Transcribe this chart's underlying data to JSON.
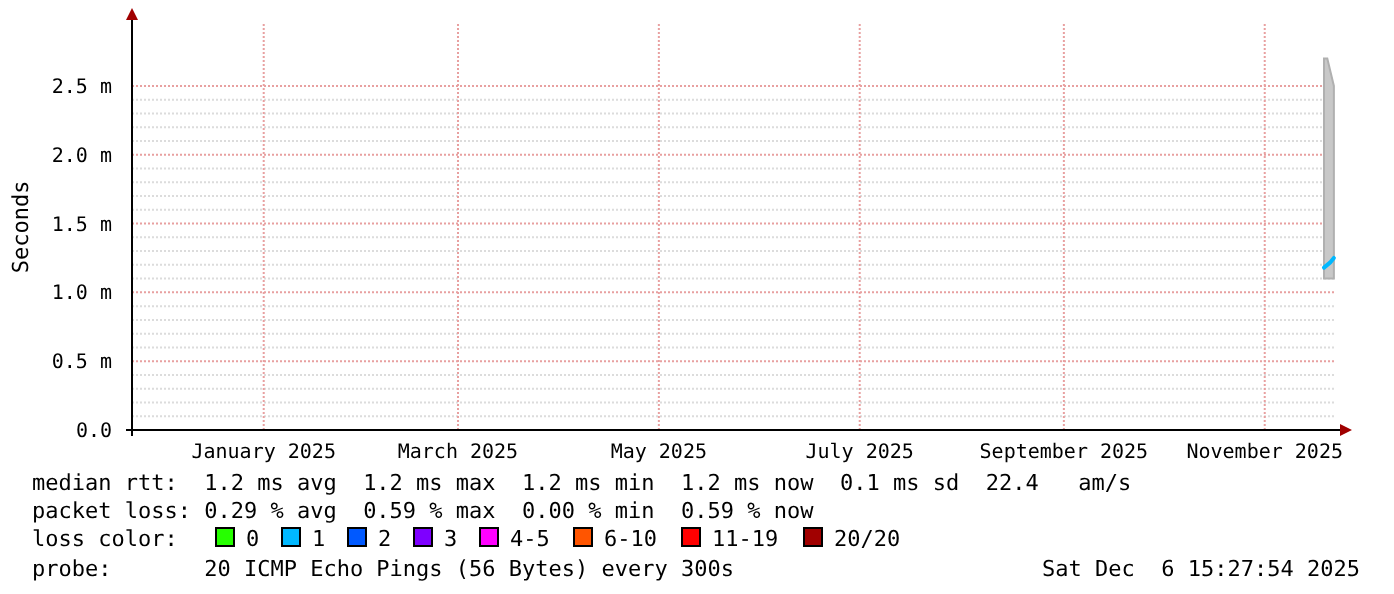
{
  "chart_data": {
    "type": "line",
    "ylabel": "Seconds",
    "xlim": [
      "2024-12-06",
      "2025-12-06T15:27"
    ],
    "xticks": [
      {
        "value": "2025-01-15",
        "label": "January 2025"
      },
      {
        "value": "2025-03-15",
        "label": "March 2025"
      },
      {
        "value": "2025-05-15",
        "label": "May 2025"
      },
      {
        "value": "2025-07-15",
        "label": "July 2025"
      },
      {
        "value": "2025-09-15",
        "label": "September 2025"
      },
      {
        "value": "2025-11-15",
        "label": "November 2025"
      }
    ],
    "ylim": [
      0,
      2.95
    ],
    "yticks": [
      {
        "value": 0,
        "label": "0.0"
      },
      {
        "value": 0.5,
        "label": "0.5 m"
      },
      {
        "value": 1,
        "label": "1.0 m"
      },
      {
        "value": 1.5,
        "label": "1.5 m"
      },
      {
        "value": 2,
        "label": "2.0 m"
      },
      {
        "value": 2.5,
        "label": "2.5 m"
      }
    ],
    "grid": true,
    "legend": "bottom",
    "legend_title": "loss color:",
    "series": [
      {
        "name": "0",
        "color": "#26ff00"
      },
      {
        "name": "1",
        "color": "#00b8ff",
        "x": [
          "2025-12-03",
          "2025-12-04",
          "2025-12-05",
          "2025-12-06"
        ],
        "values": [
          1.18,
          1.2,
          1.22,
          1.25
        ],
        "lower": [
          1.1,
          1.1,
          1.1,
          1.1
        ],
        "upper": [
          2.7,
          2.7,
          2.6,
          2.5
        ]
      },
      {
        "name": "2",
        "color": "#0059ff"
      },
      {
        "name": "3",
        "color": "#7e00ff"
      },
      {
        "name": "4-5",
        "color": "#ff00ff"
      },
      {
        "name": "6-10",
        "color": "#ff5500"
      },
      {
        "name": "11-19",
        "color": "#ff0000"
      },
      {
        "name": "20/20",
        "color": "#a10000"
      }
    ],
    "annotations": [
      "median rtt:  1.2 ms avg  1.2 ms max  1.2 ms min  1.2 ms now  0.1 ms sd  22.4   am/s",
      "packet loss: 0.29 % avg  0.59 % max  0.00 % min  0.59 % now",
      "probe:       20 ICMP Echo Pings (56 Bytes) every 300s",
      "Sat Dec  6 15:27:54 2025"
    ]
  }
}
